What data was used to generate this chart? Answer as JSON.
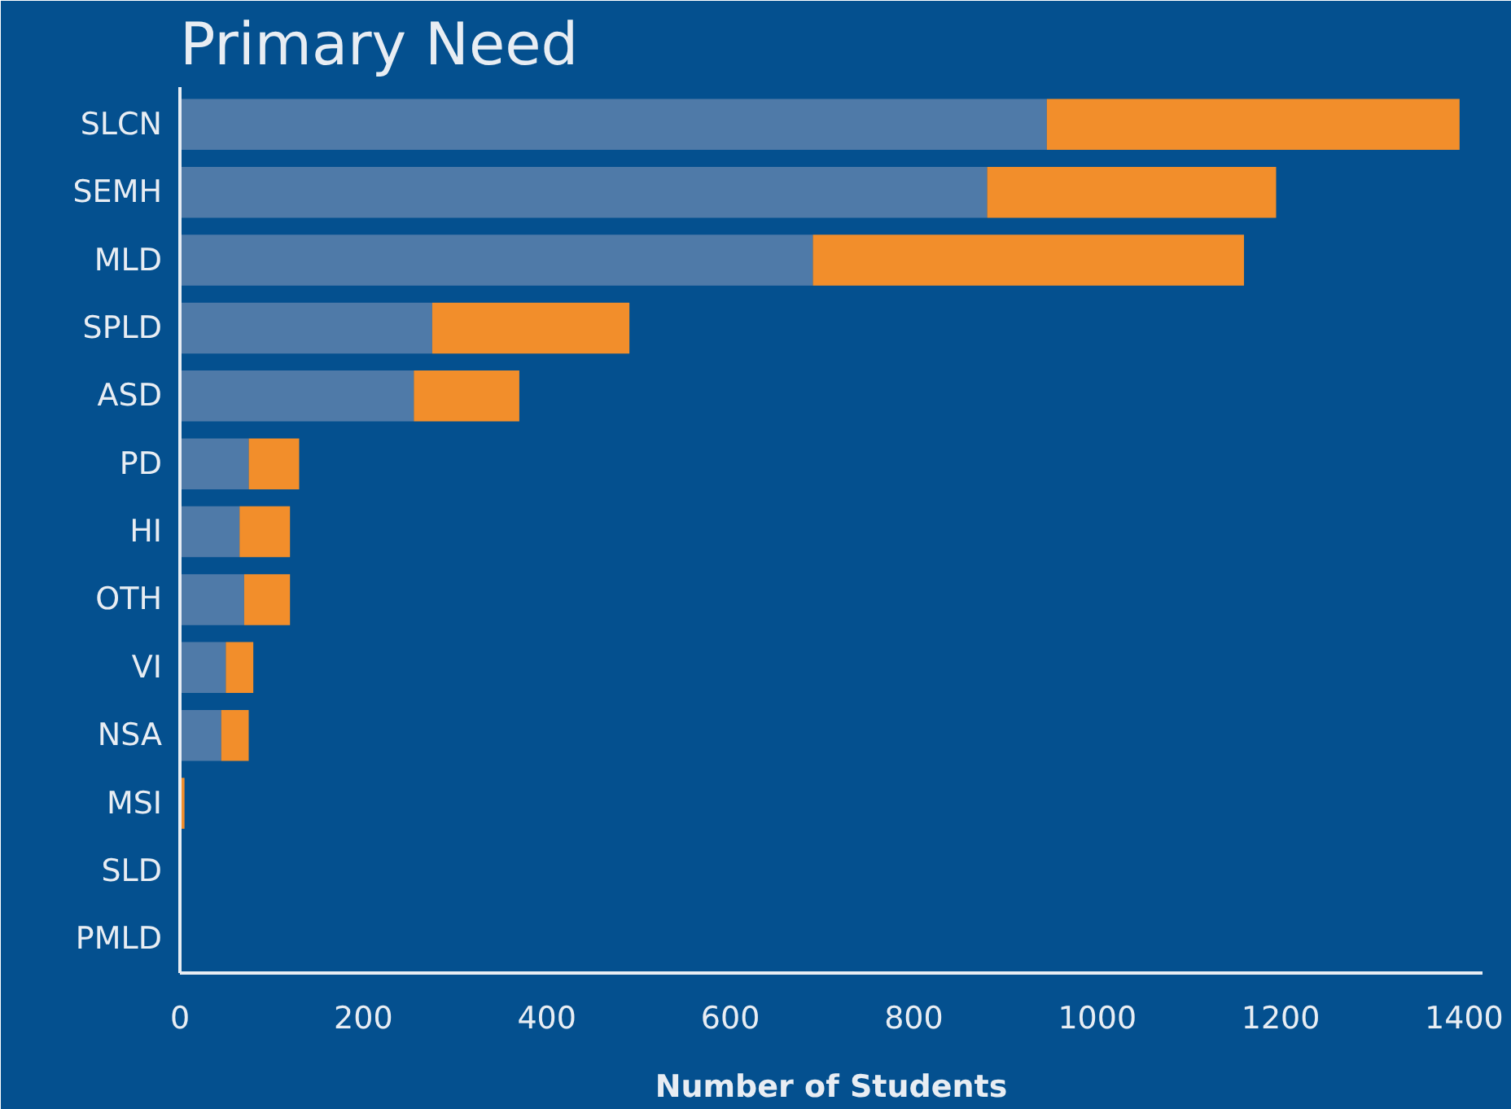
{
  "chart_data": {
    "type": "bar",
    "orientation": "horizontal",
    "stacked": true,
    "title": "Primary Need",
    "xlabel": "Number of Students",
    "categories": [
      "SLCN",
      "SEMH",
      "MLD",
      "SPLD",
      "ASD",
      "PD",
      "HI",
      "OTH",
      "VI",
      "NSA",
      "MSI",
      "SLD",
      "PMLD"
    ],
    "series": [
      {
        "color": "#4f7aa8",
        "values": [
          945,
          880,
          690,
          275,
          255,
          75,
          65,
          70,
          50,
          45,
          0,
          0,
          0
        ]
      },
      {
        "color": "#f28e2b",
        "values": [
          450,
          315,
          470,
          215,
          115,
          55,
          55,
          50,
          30,
          30,
          5,
          0,
          0
        ]
      }
    ],
    "xlim": [
      0,
      1420
    ],
    "xticks": [
      0,
      200,
      400,
      600,
      800,
      1000,
      1200,
      1400
    ],
    "grid": false,
    "legend": false
  }
}
